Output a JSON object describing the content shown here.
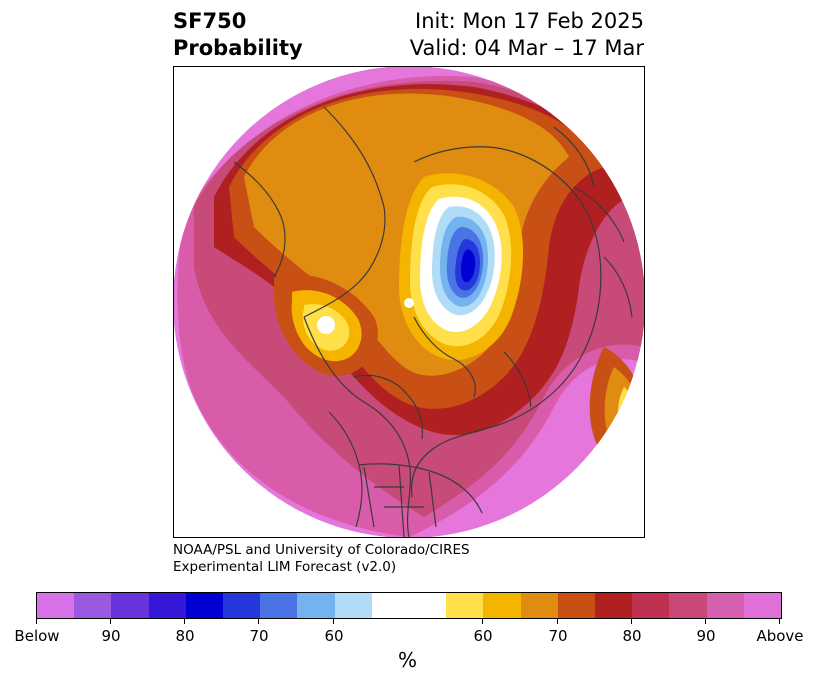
{
  "title": {
    "line1": "SF750",
    "line2": "Probability"
  },
  "subtitle": {
    "init": "Init: Mon 17 Feb 2025",
    "valid": "Valid: 04 Mar – 17 Mar"
  },
  "credit": {
    "line1": "NOAA/PSL and University of Colorado/CIRES",
    "line2": "Experimental LIM Forecast (v2.0)"
  },
  "colorbar": {
    "unit": "%",
    "colors": [
      "#d872e8",
      "#9b58e0",
      "#6a34dc",
      "#3518d8",
      "#0000d2",
      "#2438dc",
      "#4a74e4",
      "#74b2f0",
      "#b0dcf8",
      "#ffffff",
      "#ffe04a",
      "#f4b400",
      "#e08c10",
      "#c85014",
      "#b02020",
      "#c03050",
      "#c84878",
      "#d660b0",
      "#e070d8"
    ],
    "tick_labels": [
      "Below",
      "90",
      "80",
      "70",
      "60",
      "60",
      "70",
      "80",
      "90",
      "Above"
    ]
  },
  "map": {
    "projection": "north-polar-stereographic",
    "colors": {
      "pink": "#e476dc",
      "magenta": "#d85caa",
      "rose": "#c84a78",
      "crimson": "#c03050",
      "red": "#b02020",
      "rust": "#c85014",
      "orange": "#e08c10",
      "gold": "#f4b400",
      "yellow": "#ffe04a",
      "white": "#ffffff",
      "lightblue": "#b0dcf8",
      "skyblue": "#74b2f0",
      "blue": "#4a74e4",
      "royal": "#2438dc",
      "navy": "#0000d2",
      "coast": "#3a3a3a"
    }
  }
}
